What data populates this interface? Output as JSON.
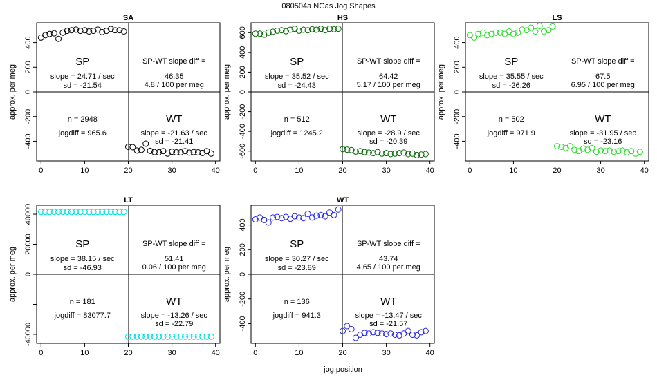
{
  "page_title": "080504a   NGas Jog Shapes",
  "xlabel": "jog position",
  "ylabel": "approx. per meg",
  "sp_label": "SP",
  "wt_label": "WT",
  "chart_data": [
    {
      "type": "scatter",
      "title": "SA",
      "color": "#000000",
      "xlim": [
        -1,
        41
      ],
      "ylim": [
        -560,
        560
      ],
      "x_ticks": [
        0,
        10,
        20,
        30,
        40
      ],
      "y_ticks": [
        -400,
        -200,
        0,
        200,
        400
      ],
      "sp_slope": "slope = 24.71 / sec",
      "sp_sd": "sd = -21.54",
      "diff_label": "SP-WT slope diff =",
      "diff_value": "46.35",
      "diff_per": "4.8 / 100 per meg",
      "n": "n = 2948",
      "jogdiff": "jogdiff = 965.6",
      "wt_slope": "slope = -21.63 / sec",
      "wt_sd": "sd = -21.41",
      "x": [
        0,
        1,
        2,
        3,
        4,
        5,
        6,
        7,
        8,
        9,
        10,
        11,
        12,
        13,
        14,
        15,
        16,
        17,
        18,
        19,
        20,
        21,
        22,
        23,
        24,
        25,
        26,
        27,
        28,
        29,
        30,
        31,
        32,
        33,
        34,
        35,
        36,
        37,
        38,
        39
      ],
      "y": [
        440,
        460,
        470,
        475,
        430,
        480,
        495,
        500,
        505,
        495,
        500,
        490,
        495,
        505,
        485,
        495,
        510,
        500,
        500,
        490,
        -445,
        -448,
        -475,
        -470,
        -420,
        -478,
        -488,
        -490,
        -480,
        -500,
        -485,
        -490,
        -490,
        -480,
        -492,
        -488,
        -490,
        -495,
        -480,
        -500
      ]
    },
    {
      "type": "scatter",
      "title": "HS",
      "color": "#006400",
      "xlim": [
        -1,
        41
      ],
      "ylim": [
        -700,
        700
      ],
      "x_ticks": [
        0,
        10,
        20,
        30,
        40
      ],
      "y_ticks": [
        -600,
        -400,
        -200,
        0,
        200,
        400,
        600
      ],
      "sp_slope": "slope = 35.52 / sec",
      "sp_sd": "sd = -24.43",
      "diff_label": "SP-WT slope diff =",
      "diff_value": "64.42",
      "diff_per": "5.17 / 100 per meg",
      "n": "n = 512",
      "jogdiff": "jogdiff = 1245.2",
      "wt_slope": "slope = -28.9 / sec",
      "wt_sd": "sd = -20.39",
      "x": [
        0,
        1,
        2,
        3,
        4,
        5,
        6,
        7,
        8,
        9,
        10,
        11,
        12,
        13,
        14,
        15,
        16,
        17,
        18,
        19,
        20,
        21,
        22,
        23,
        24,
        25,
        26,
        27,
        28,
        29,
        30,
        31,
        32,
        33,
        34,
        35,
        36,
        37,
        38,
        39
      ],
      "y": [
        590,
        590,
        580,
        600,
        610,
        620,
        625,
        615,
        630,
        640,
        620,
        630,
        625,
        635,
        630,
        640,
        625,
        640,
        635,
        640,
        -580,
        -585,
        -590,
        -605,
        -600,
        -610,
        -615,
        -620,
        -610,
        -625,
        -620,
        -630,
        -625,
        -620,
        -615,
        -630,
        -625,
        -640,
        -635,
        -630
      ]
    },
    {
      "type": "scatter",
      "title": "LS",
      "color": "#22DD22",
      "xlim": [
        -1,
        41
      ],
      "ylim": [
        -560,
        560
      ],
      "x_ticks": [
        0,
        10,
        20,
        30,
        40
      ],
      "y_ticks": [
        -400,
        -200,
        0,
        200,
        400
      ],
      "sp_slope": "slope = 35.55 / sec",
      "sp_sd": "sd = -26.26",
      "diff_label": "SP-WT slope diff =",
      "diff_value": "67.5",
      "diff_per": "6.95 / 100 per meg",
      "n": "n = 502",
      "jogdiff": "jogdiff = 971.9",
      "wt_slope": "slope = -31.95 / sec",
      "wt_sd": "sd = -23.16",
      "x": [
        0,
        1,
        2,
        3,
        4,
        5,
        6,
        7,
        8,
        9,
        10,
        11,
        12,
        13,
        14,
        15,
        16,
        17,
        18,
        19,
        20,
        21,
        22,
        23,
        24,
        25,
        26,
        27,
        28,
        29,
        30,
        31,
        32,
        33,
        34,
        35,
        36,
        37,
        38,
        39
      ],
      "y": [
        460,
        440,
        470,
        480,
        460,
        470,
        480,
        480,
        470,
        490,
        470,
        480,
        505,
        500,
        520,
        490,
        535,
        490,
        500,
        530,
        -440,
        -445,
        -455,
        -440,
        -470,
        -480,
        -460,
        -470,
        -455,
        -485,
        -475,
        -480,
        -475,
        -485,
        -480,
        -475,
        -490,
        -480,
        -500,
        -485
      ]
    },
    {
      "type": "scatter",
      "title": "LT",
      "color": "#00E0E0",
      "xlim": [
        -1,
        41
      ],
      "ylim": [
        -46000,
        46000
      ],
      "x_ticks": [
        0,
        10,
        20,
        30,
        40
      ],
      "y_ticks": [
        -40000,
        -20000,
        0,
        20000,
        40000
      ],
      "y_tick_labels": [
        "-40000",
        "",
        "0",
        "20000",
        "40000"
      ],
      "sp_slope": "slope = 38.15 / sec",
      "sp_sd": "sd = -46.93",
      "diff_label": "SP-WT slope diff =",
      "diff_value": "51.41",
      "diff_per": "0.06 / 100 per meg",
      "n": "n = 181",
      "jogdiff": "jogdiff = 83077.7",
      "wt_slope": "slope = -13.26 / sec",
      "wt_sd": "sd = -22.79",
      "x": [
        0,
        1,
        2,
        3,
        4,
        5,
        6,
        7,
        8,
        9,
        10,
        11,
        12,
        13,
        14,
        15,
        16,
        17,
        18,
        19,
        20,
        21,
        22,
        23,
        24,
        25,
        26,
        27,
        28,
        29,
        30,
        31,
        32,
        33,
        34,
        35,
        36,
        37,
        38,
        39
      ],
      "y": [
        41540,
        41540,
        41540,
        41540,
        41540,
        41540,
        41540,
        41540,
        41540,
        41540,
        41540,
        41540,
        41540,
        41540,
        41540,
        41540,
        41540,
        41540,
        41540,
        41540,
        -41540,
        -41540,
        -41540,
        -41540,
        -41540,
        -41540,
        -41540,
        -41540,
        -41540,
        -41540,
        -41540,
        -41540,
        -41540,
        -41540,
        -41540,
        -41540,
        -41540,
        -41540,
        -41540,
        -41540
      ]
    },
    {
      "type": "scatter",
      "title": "WT",
      "color": "#2222EE",
      "xlim": [
        -1,
        41
      ],
      "ylim": [
        -560,
        560
      ],
      "x_ticks": [
        0,
        10,
        20,
        30,
        40
      ],
      "y_ticks": [
        -400,
        -200,
        0,
        200,
        400
      ],
      "sp_slope": "slope = 30.27 / sec",
      "sp_sd": "sd = -23.89",
      "diff_label": "SP-WT slope diff =",
      "diff_value": "43.74",
      "diff_per": "4.65 / 100 per meg",
      "n": "n = 136",
      "jogdiff": "jogdiff = 941.3",
      "wt_slope": "slope = -13.47 / sec",
      "wt_sd": "sd = -21.57",
      "x": [
        0,
        1,
        2,
        3,
        4,
        5,
        6,
        7,
        8,
        9,
        10,
        11,
        12,
        13,
        14,
        15,
        16,
        17,
        18,
        19,
        20,
        21,
        22,
        23,
        24,
        25,
        26,
        27,
        28,
        29,
        30,
        31,
        32,
        33,
        34,
        35,
        36,
        37,
        38,
        39
      ],
      "y": [
        445,
        460,
        440,
        420,
        460,
        465,
        455,
        465,
        450,
        470,
        460,
        455,
        490,
        460,
        475,
        480,
        470,
        500,
        480,
        525,
        -460,
        -420,
        -445,
        -515,
        -490,
        -475,
        -480,
        -470,
        -475,
        -480,
        -485,
        -480,
        -490,
        -495,
        -480,
        -460,
        -490,
        -495,
        -470,
        -460
      ]
    }
  ]
}
